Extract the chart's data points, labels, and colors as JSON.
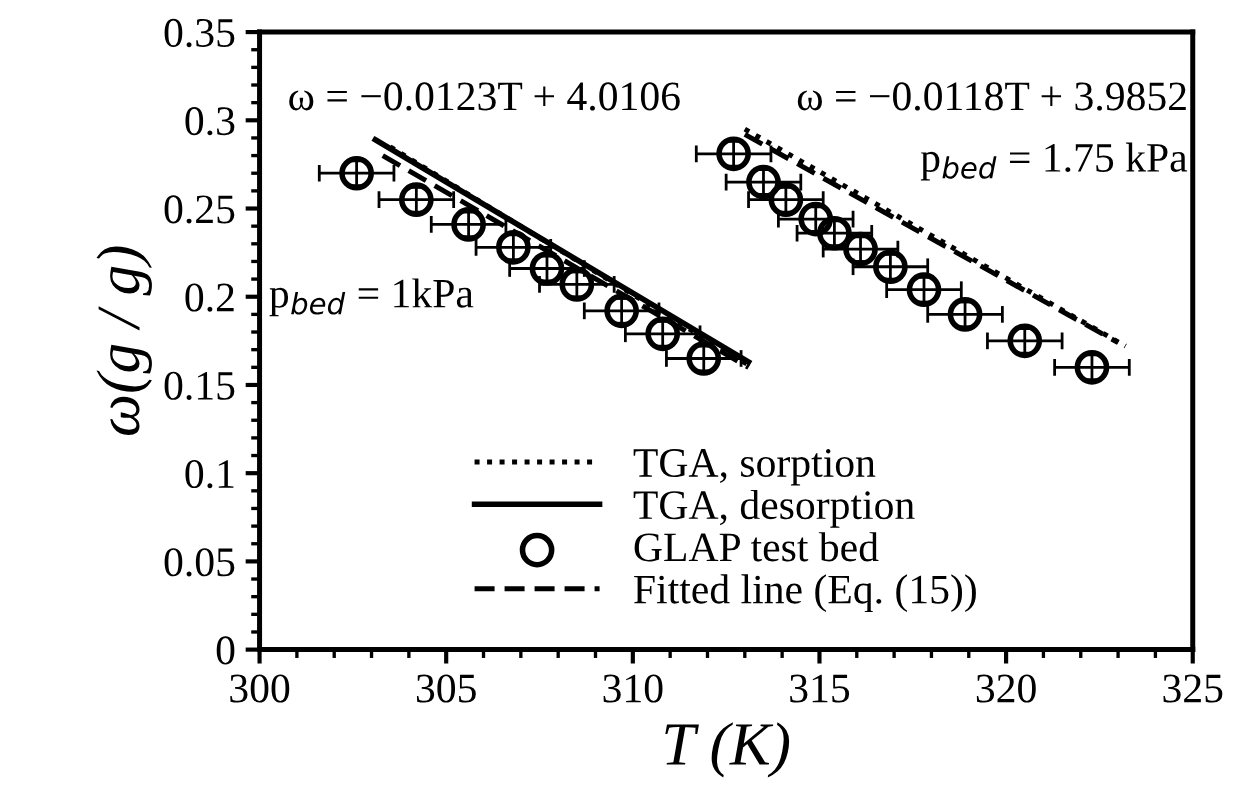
{
  "chart_data": {
    "type": "line",
    "xlabel": "T (K)",
    "ylabel": "ω(g / g)",
    "xlim": [
      300,
      325
    ],
    "xticks": [
      300,
      305,
      310,
      315,
      320,
      325
    ],
    "ylim": [
      0,
      0.35
    ],
    "yticks": [
      0,
      0.05,
      0.1,
      0.15,
      0.2,
      0.25,
      0.3,
      0.35
    ],
    "grid": false,
    "legend": "bottom",
    "series": [
      {
        "name": "TGA, sorption",
        "line_style": "dotted",
        "color": "#000000",
        "x": [
          303.5,
          313.2
        ],
        "values": [
          0.285,
          0.16
        ]
      },
      {
        "name": "TGA, desorption",
        "line_style": "solid",
        "color": "#000000",
        "x": [
          303.1,
          313.1
        ],
        "values": [
          0.289,
          0.163
        ]
      },
      {
        "name": "GLAP test bed",
        "type": "scatter",
        "marker": "circle",
        "color": "#000000",
        "x": [
          302.6,
          304.2,
          305.6,
          306.8,
          307.7,
          308.5,
          309.7,
          310.8,
          311.9
        ],
        "values": [
          0.27,
          0.255,
          0.241,
          0.228,
          0.216,
          0.207,
          0.192,
          0.179,
          0.165
        ],
        "errors": [
          0.007,
          0.007,
          0.007,
          0.007,
          0.007,
          0.007,
          0.007,
          0.007,
          0.007
        ],
        "xerrors": [
          1,
          1,
          1,
          1,
          1,
          1,
          1,
          1,
          1
        ]
      },
      {
        "name": "Fitted line (Eq. (15))",
        "line_style": "dashed",
        "color": "#000000",
        "x": [
          303.3,
          313.1
        ],
        "values": [
          0.28,
          0.16
        ]
      },
      {
        "line_style": "dotted",
        "color": "#000000",
        "x": [
          313.0,
          323.2
        ],
        "values": [
          0.295,
          0.172
        ]
      },
      {
        "type": "scatter",
        "marker": "circle",
        "color": "#000000",
        "x": [
          312.7,
          313.5,
          314.1,
          314.9,
          315.4,
          316.1,
          316.9,
          317.8,
          318.9,
          320.5,
          322.3
        ],
        "values": [
          0.281,
          0.265,
          0.255,
          0.244,
          0.236,
          0.227,
          0.217,
          0.204,
          0.19,
          0.175,
          0.16
        ],
        "errors": [
          0.007,
          0.007,
          0.007,
          0.007,
          0.007,
          0.007,
          0.007,
          0.007,
          0.007,
          0.007,
          0.007
        ],
        "xerrors": [
          1,
          1,
          1,
          1,
          1,
          1,
          1,
          1,
          1,
          1,
          1
        ]
      },
      {
        "line_style": "dashed",
        "color": "#000000",
        "x": [
          313.0,
          323.0
        ],
        "values": [
          0.292,
          0.174
        ]
      }
    ],
    "annotations": [
      "ω = −0.0123T + 4.0106",
      "p$_{bed}$ = 1kPa",
      "ω = −0.0118T + 3.9852",
      "p$_{bed}$ = 1.75 kPa"
    ]
  }
}
